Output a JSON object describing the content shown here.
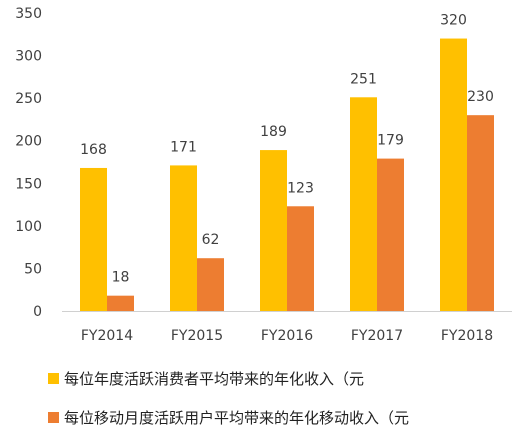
{
  "chart_data": {
    "type": "bar",
    "categories": [
      "FY2014",
      "FY2015",
      "FY2016",
      "FY2017",
      "FY2018"
    ],
    "series": [
      {
        "name": "每位年度活跃消费者平均带来的年化收入（元",
        "values": [
          168,
          171,
          189,
          251,
          320
        ],
        "color": "#FFC000"
      },
      {
        "name": "每位移动月度活跃用户平均带来的年化移动收入（元",
        "values": [
          18,
          62,
          123,
          179,
          230
        ],
        "color": "#ED7D31"
      }
    ],
    "ylim": [
      0,
      350
    ],
    "yticks": [
      0,
      50,
      100,
      150,
      200,
      250,
      300,
      350
    ],
    "grid": false,
    "legend_position": "bottom-left",
    "data_labels": true
  }
}
